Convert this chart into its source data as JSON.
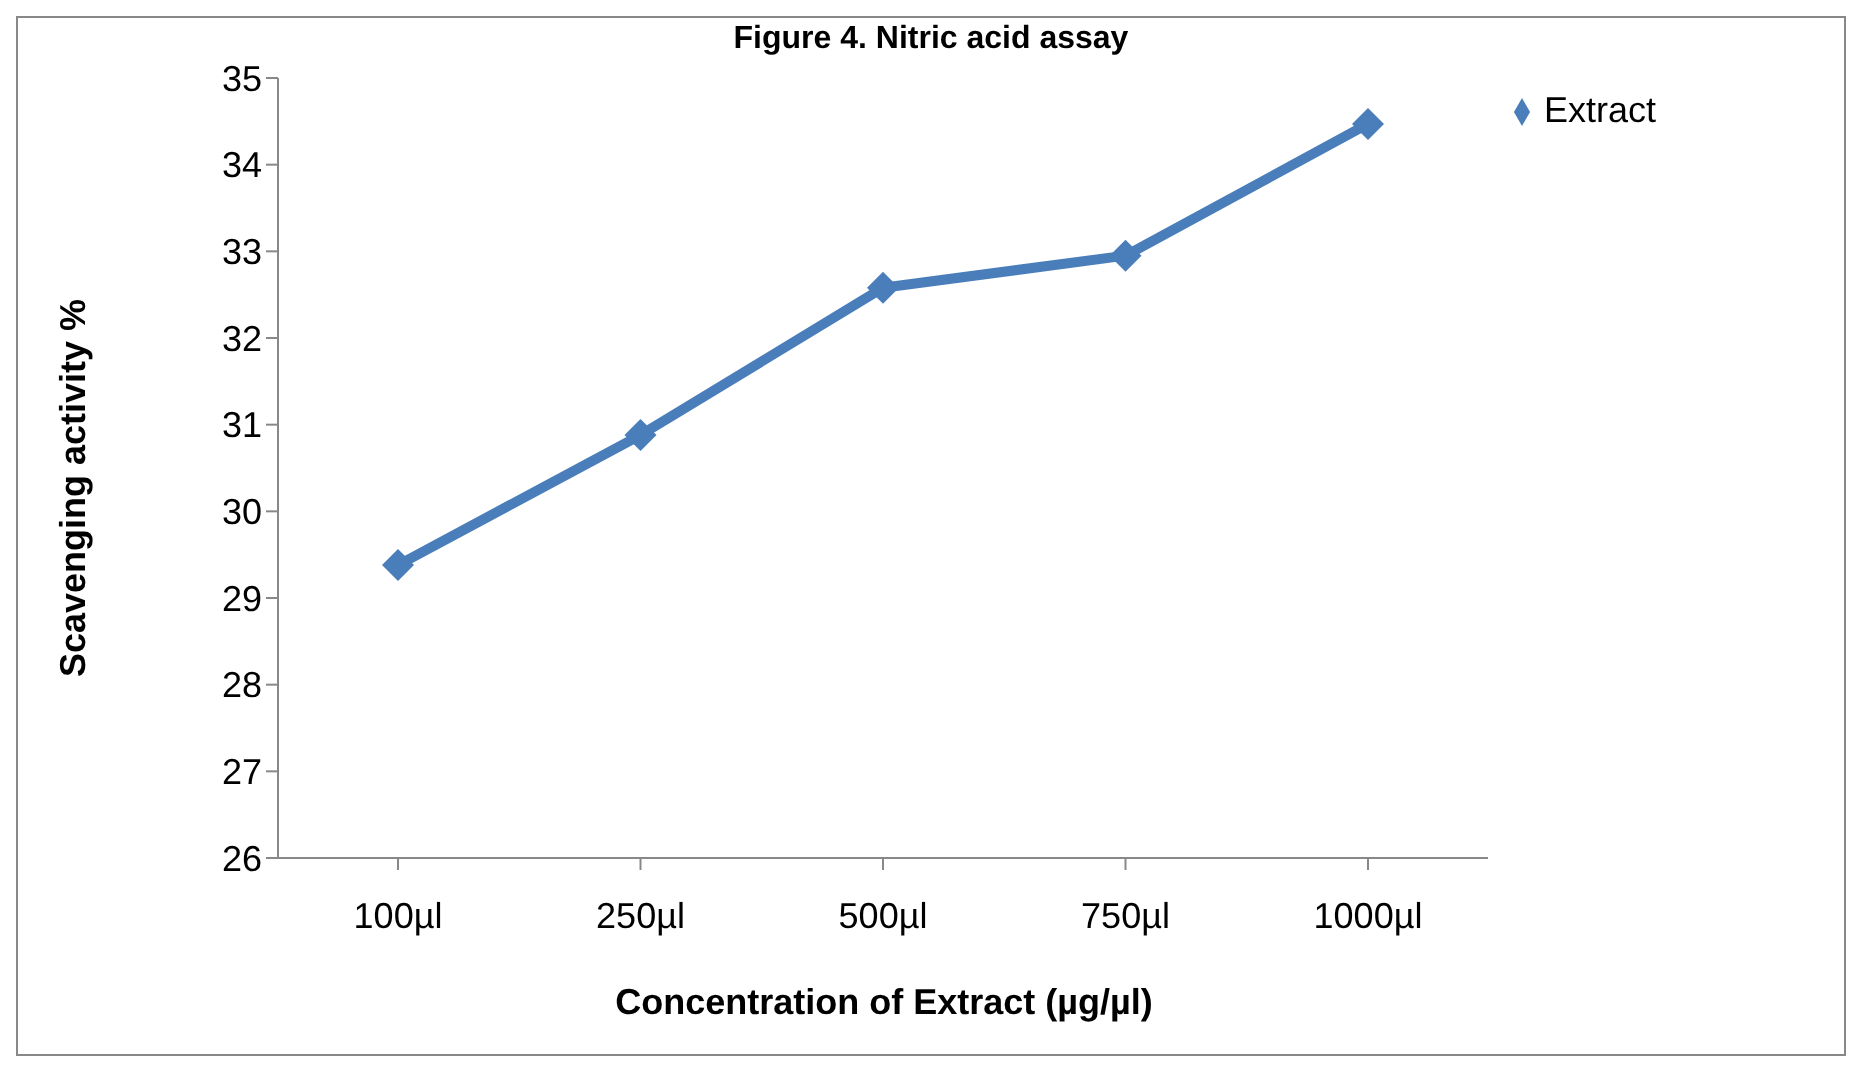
{
  "chart_data": {
    "type": "line",
    "title": "Figure 4. Nitric acid assay",
    "xlabel": "Concentration of Extract (µg/µl)",
    "ylabel": "Scavenging activity %",
    "categories": [
      "100µl",
      "250µl",
      "500µl",
      "750µl",
      "1000µl"
    ],
    "series": [
      {
        "name": "Extract",
        "color": "#4a7ebb",
        "values": [
          29.38,
          30.88,
          32.58,
          32.95,
          34.47
        ]
      }
    ],
    "ylim": [
      26,
      35
    ],
    "yticks": [
      26,
      27,
      28,
      29,
      30,
      31,
      32,
      33,
      34,
      35
    ],
    "grid": false,
    "legend": "top right",
    "marker": "diamond",
    "line_style": "solid"
  }
}
